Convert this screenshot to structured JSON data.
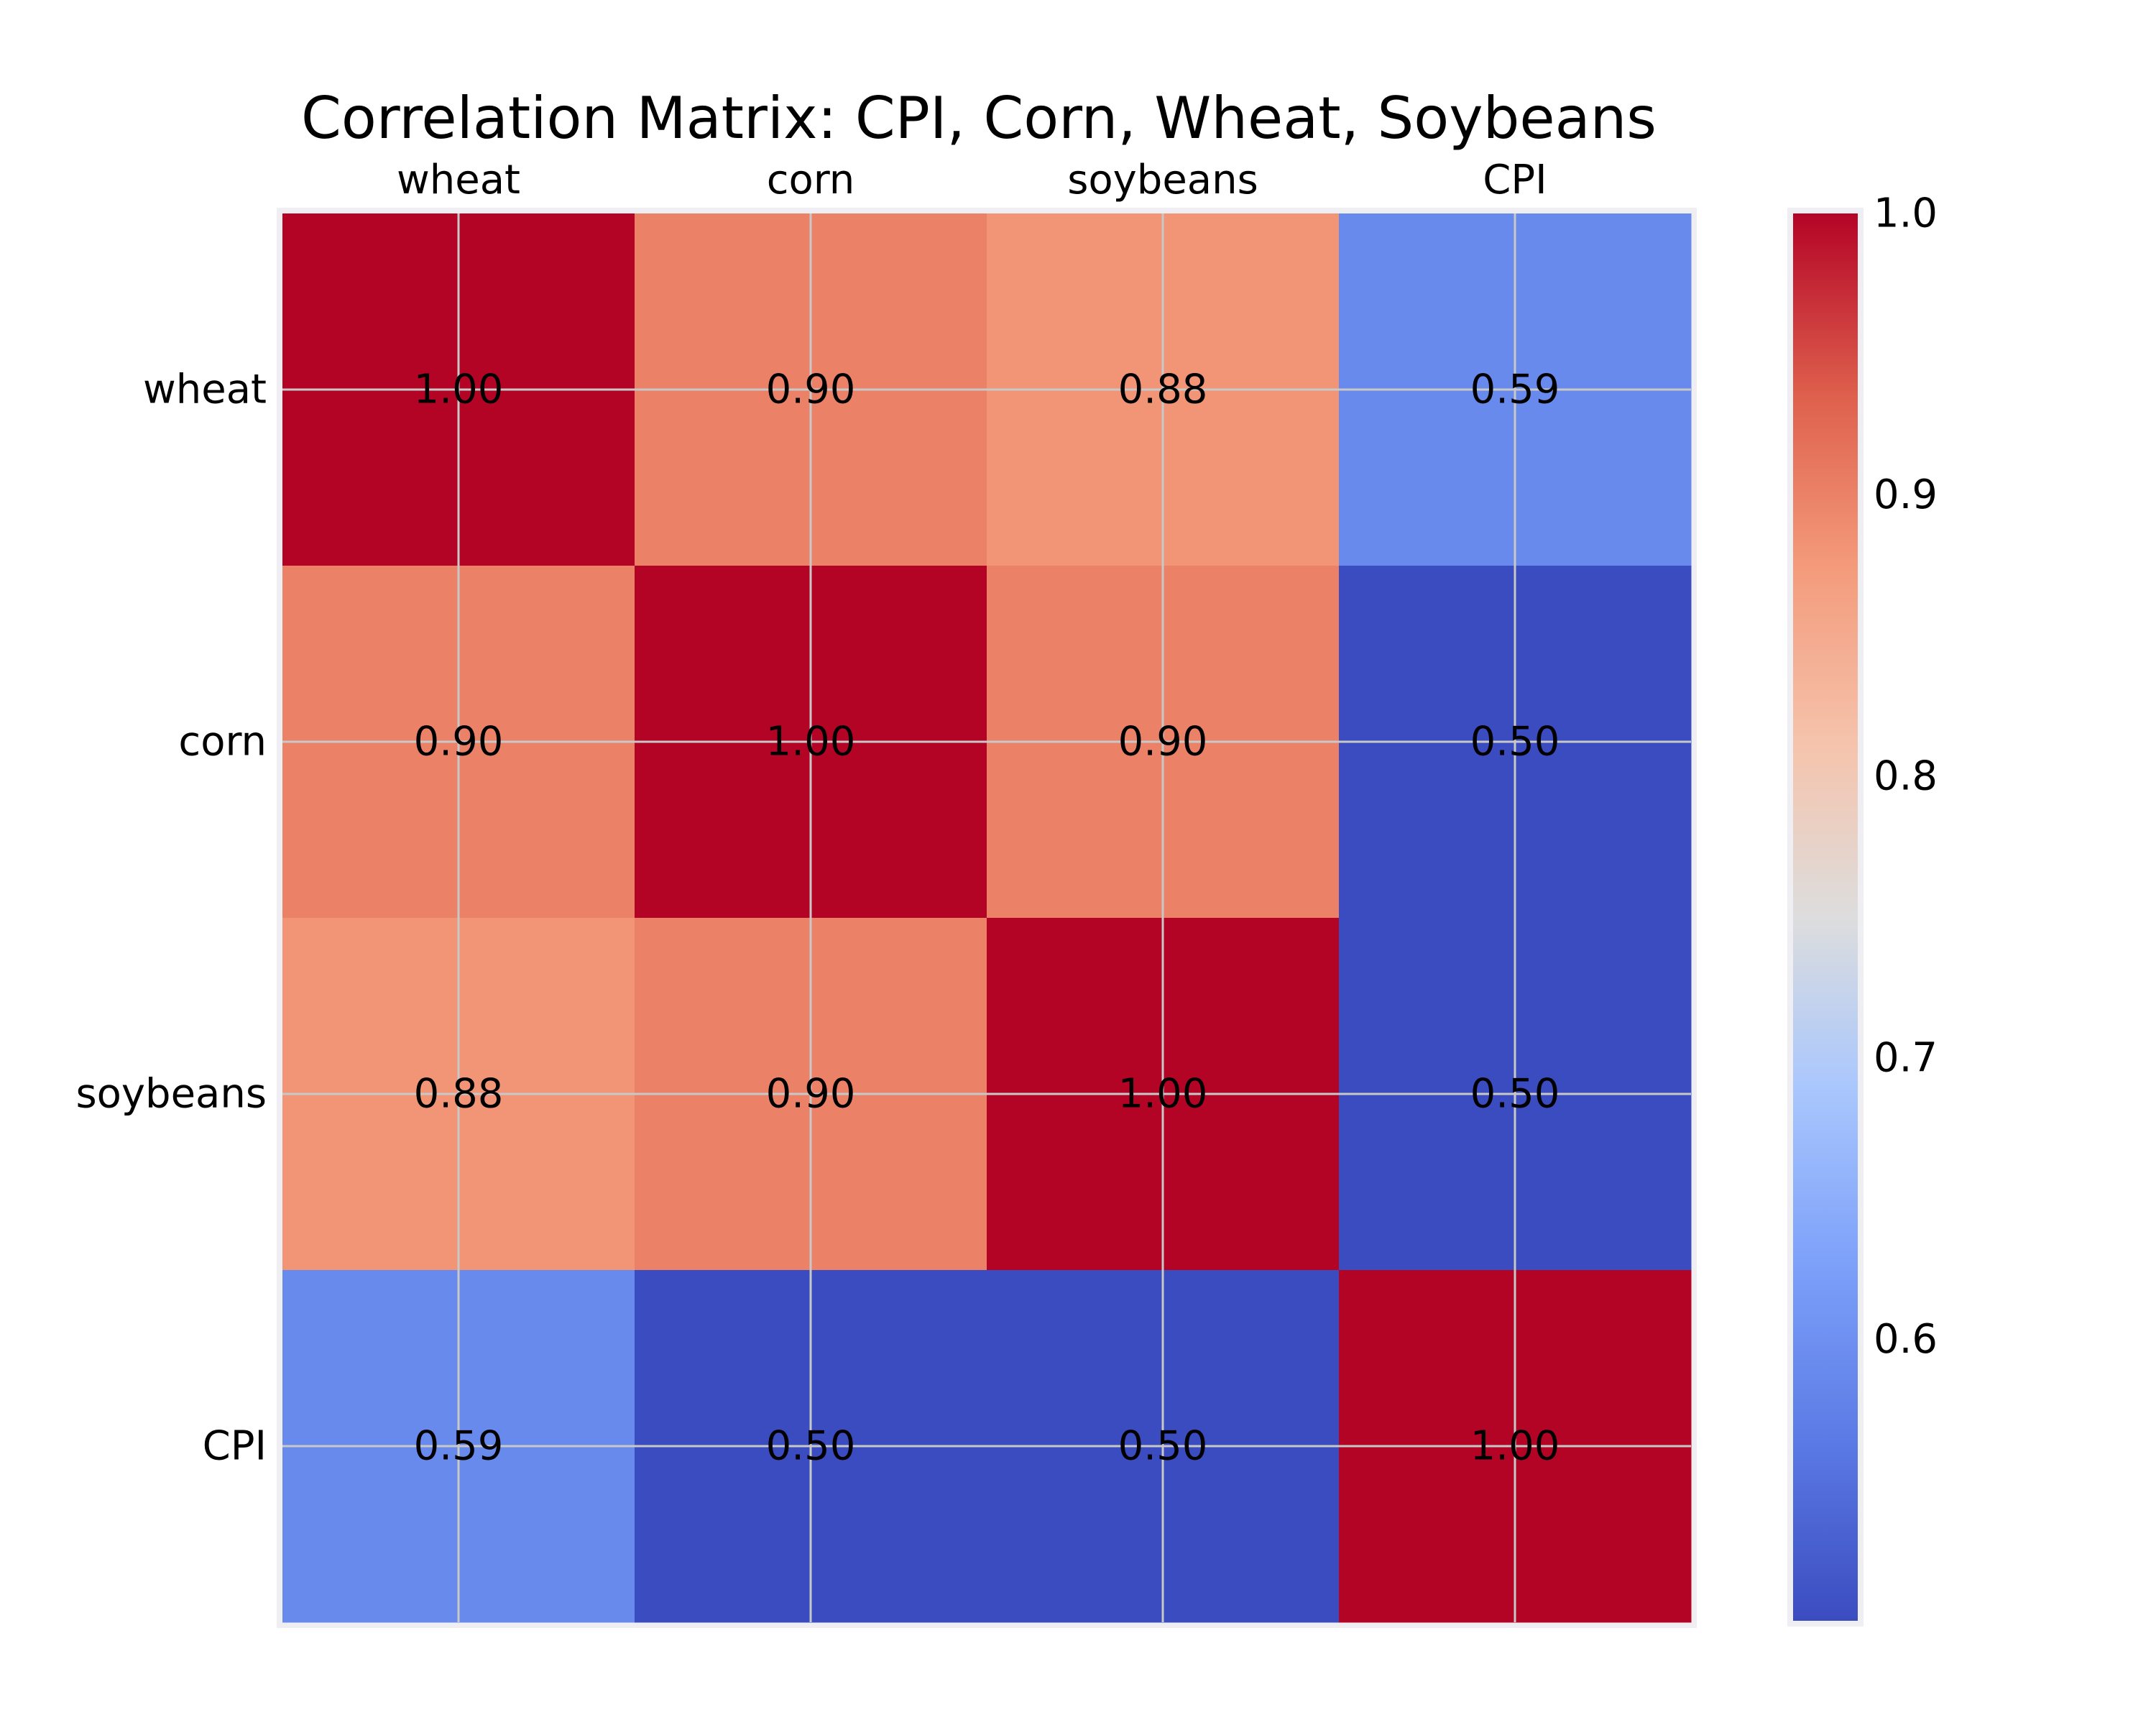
{
  "chart_data": {
    "type": "heatmap",
    "title": "Correlation Matrix: CPI, Corn, Wheat, Soybeans",
    "x_categories": [
      "wheat",
      "corn",
      "soybeans",
      "CPI"
    ],
    "y_categories": [
      "wheat",
      "corn",
      "soybeans",
      "CPI"
    ],
    "values": [
      [
        1.0,
        0.9,
        0.88,
        0.59
      ],
      [
        0.9,
        1.0,
        0.9,
        0.5
      ],
      [
        0.88,
        0.9,
        1.0,
        0.5
      ],
      [
        0.59,
        0.5,
        0.5,
        1.0
      ]
    ],
    "cell_labels": [
      [
        "1.00",
        "0.90",
        "0.88",
        "0.59"
      ],
      [
        "0.90",
        "1.00",
        "0.90",
        "0.50"
      ],
      [
        "0.88",
        "0.90",
        "1.00",
        "0.50"
      ],
      [
        "0.59",
        "0.50",
        "0.50",
        "1.00"
      ]
    ],
    "x_axis_position": "top",
    "grid": true,
    "colormap": "coolwarm",
    "colorbar": {
      "vmin": 0.5,
      "vmax": 1.0,
      "ticks": [
        "0.6",
        "0.7",
        "0.8",
        "0.9",
        "1.0"
      ],
      "tick_values": [
        0.6,
        0.7,
        0.8,
        0.9,
        1.0
      ],
      "position": "right"
    },
    "colors": {
      "low": "#3b4cc0",
      "mid": "#dddddd",
      "high": "#b40426",
      "frame": "#efeff3",
      "gridline": "#c8c8c8"
    }
  }
}
